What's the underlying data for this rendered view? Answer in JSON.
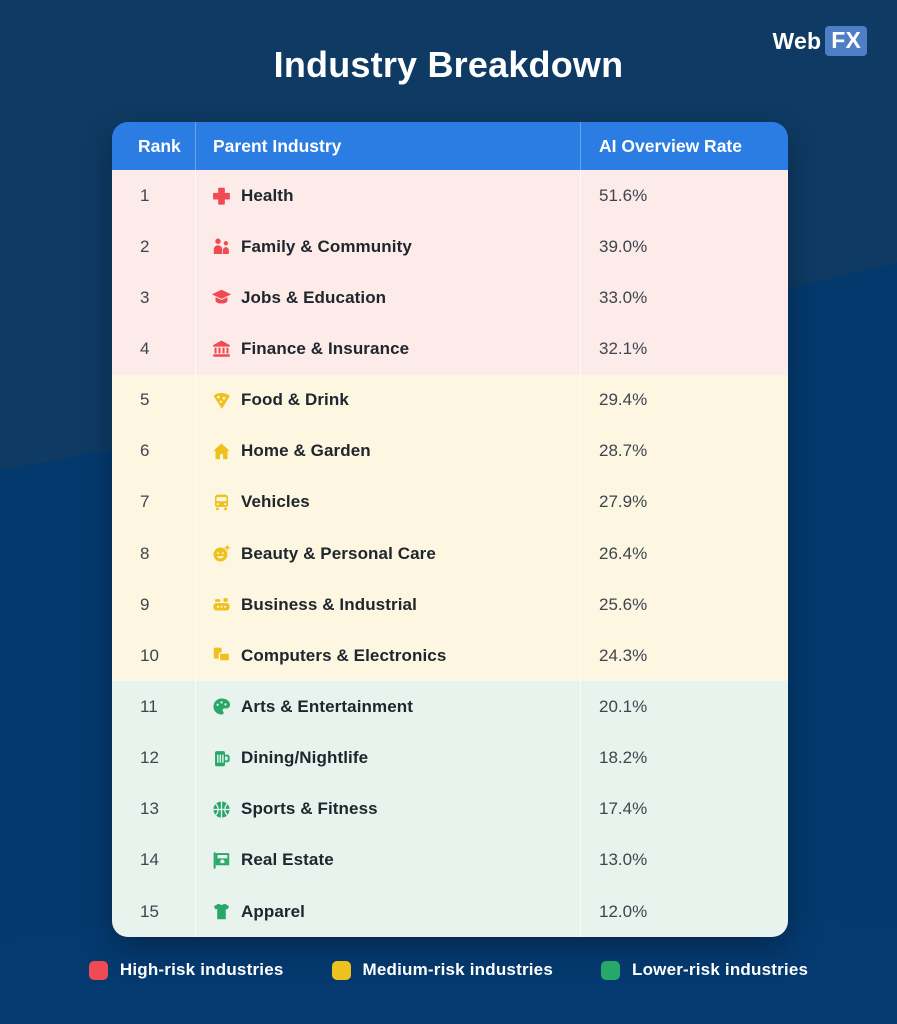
{
  "title": "Industry Breakdown",
  "brand": {
    "part1": "Web",
    "part2": "FX"
  },
  "table": {
    "headers": [
      "Rank",
      "Parent Industry",
      "AI Overview Rate"
    ],
    "rows": [
      {
        "rank": "1",
        "industry": "Health",
        "rate": "51.6%",
        "risk": "high",
        "icon": "health-cross-icon"
      },
      {
        "rank": "2",
        "industry": "Family & Community",
        "rate": "39.0%",
        "risk": "high",
        "icon": "family-icon"
      },
      {
        "rank": "3",
        "industry": "Jobs & Education",
        "rate": "33.0%",
        "risk": "high",
        "icon": "graduation-cap-icon"
      },
      {
        "rank": "4",
        "industry": "Finance & Insurance",
        "rate": "32.1%",
        "risk": "high",
        "icon": "bank-icon"
      },
      {
        "rank": "5",
        "industry": "Food & Drink",
        "rate": "29.4%",
        "risk": "medium",
        "icon": "pizza-icon"
      },
      {
        "rank": "6",
        "industry": "Home & Garden",
        "rate": "28.7%",
        "risk": "medium",
        "icon": "house-icon"
      },
      {
        "rank": "7",
        "industry": "Vehicles",
        "rate": "27.9%",
        "risk": "medium",
        "icon": "car-icon"
      },
      {
        "rank": "8",
        "industry": "Beauty & Personal Care",
        "rate": "26.4%",
        "risk": "medium",
        "icon": "smiley-sparkle-icon"
      },
      {
        "rank": "9",
        "industry": "Business & Industrial",
        "rate": "25.6%",
        "risk": "medium",
        "icon": "factory-machine-icon"
      },
      {
        "rank": "10",
        "industry": "Computers & Electronics",
        "rate": "24.3%",
        "risk": "medium",
        "icon": "devices-icon"
      },
      {
        "rank": "11",
        "industry": "Arts & Entertainment",
        "rate": "20.1%",
        "risk": "low",
        "icon": "palette-icon"
      },
      {
        "rank": "12",
        "industry": "Dining/Nightlife",
        "rate": "18.2%",
        "risk": "low",
        "icon": "beer-mug-icon"
      },
      {
        "rank": "13",
        "industry": "Sports & Fitness",
        "rate": "17.4%",
        "risk": "low",
        "icon": "basketball-icon"
      },
      {
        "rank": "14",
        "industry": "Real Estate",
        "rate": "13.0%",
        "risk": "low",
        "icon": "real-estate-sign-icon"
      },
      {
        "rank": "15",
        "industry": "Apparel",
        "rate": "12.0%",
        "risk": "low",
        "icon": "tshirt-icon"
      }
    ]
  },
  "legend": [
    {
      "label": "High-risk industries",
      "color": "#ef4b55",
      "risk": "high"
    },
    {
      "label": "Medium-risk industries",
      "color": "#eec11e",
      "risk": "medium"
    },
    {
      "label": "Lower-risk industries",
      "color": "#27a869",
      "risk": "low"
    }
  ],
  "colors": {
    "background": "#0e3a63",
    "background_wave": "#04396e",
    "header_blue": "#2b7de3",
    "high_row_bg": "#fcebe9",
    "medium_row_bg": "#fdf7e2",
    "low_row_bg": "#e9f3ee",
    "high_accent": "#ef4b55",
    "medium_accent": "#eec11e",
    "low_accent": "#27a869",
    "logo_badge": "#4e7fc6"
  },
  "chart_data": {
    "type": "table",
    "title": "Industry Breakdown",
    "columns": [
      "Rank",
      "Parent Industry",
      "AI Overview Rate"
    ],
    "rows": [
      [
        1,
        "Health",
        51.6
      ],
      [
        2,
        "Family & Community",
        39.0
      ],
      [
        3,
        "Jobs & Education",
        33.0
      ],
      [
        4,
        "Finance & Insurance",
        32.1
      ],
      [
        5,
        "Food & Drink",
        29.4
      ],
      [
        6,
        "Home & Garden",
        28.7
      ],
      [
        7,
        "Vehicles",
        27.9
      ],
      [
        8,
        "Beauty & Personal Care",
        26.4
      ],
      [
        9,
        "Business & Industrial",
        25.6
      ],
      [
        10,
        "Computers & Electronics",
        24.3
      ],
      [
        11,
        "Arts & Entertainment",
        20.1
      ],
      [
        12,
        "Dining/Nightlife",
        18.2
      ],
      [
        13,
        "Sports & Fitness",
        17.4
      ],
      [
        14,
        "Real Estate",
        13.0
      ],
      [
        15,
        "Apparel",
        12.0
      ]
    ],
    "row_groups": [
      {
        "label": "High-risk industries",
        "ranks": [
          1,
          2,
          3,
          4
        ]
      },
      {
        "label": "Medium-risk industries",
        "ranks": [
          5,
          6,
          7,
          8,
          9,
          10
        ]
      },
      {
        "label": "Lower-risk industries",
        "ranks": [
          11,
          12,
          13,
          14,
          15
        ]
      }
    ],
    "value_unit": "percent"
  }
}
